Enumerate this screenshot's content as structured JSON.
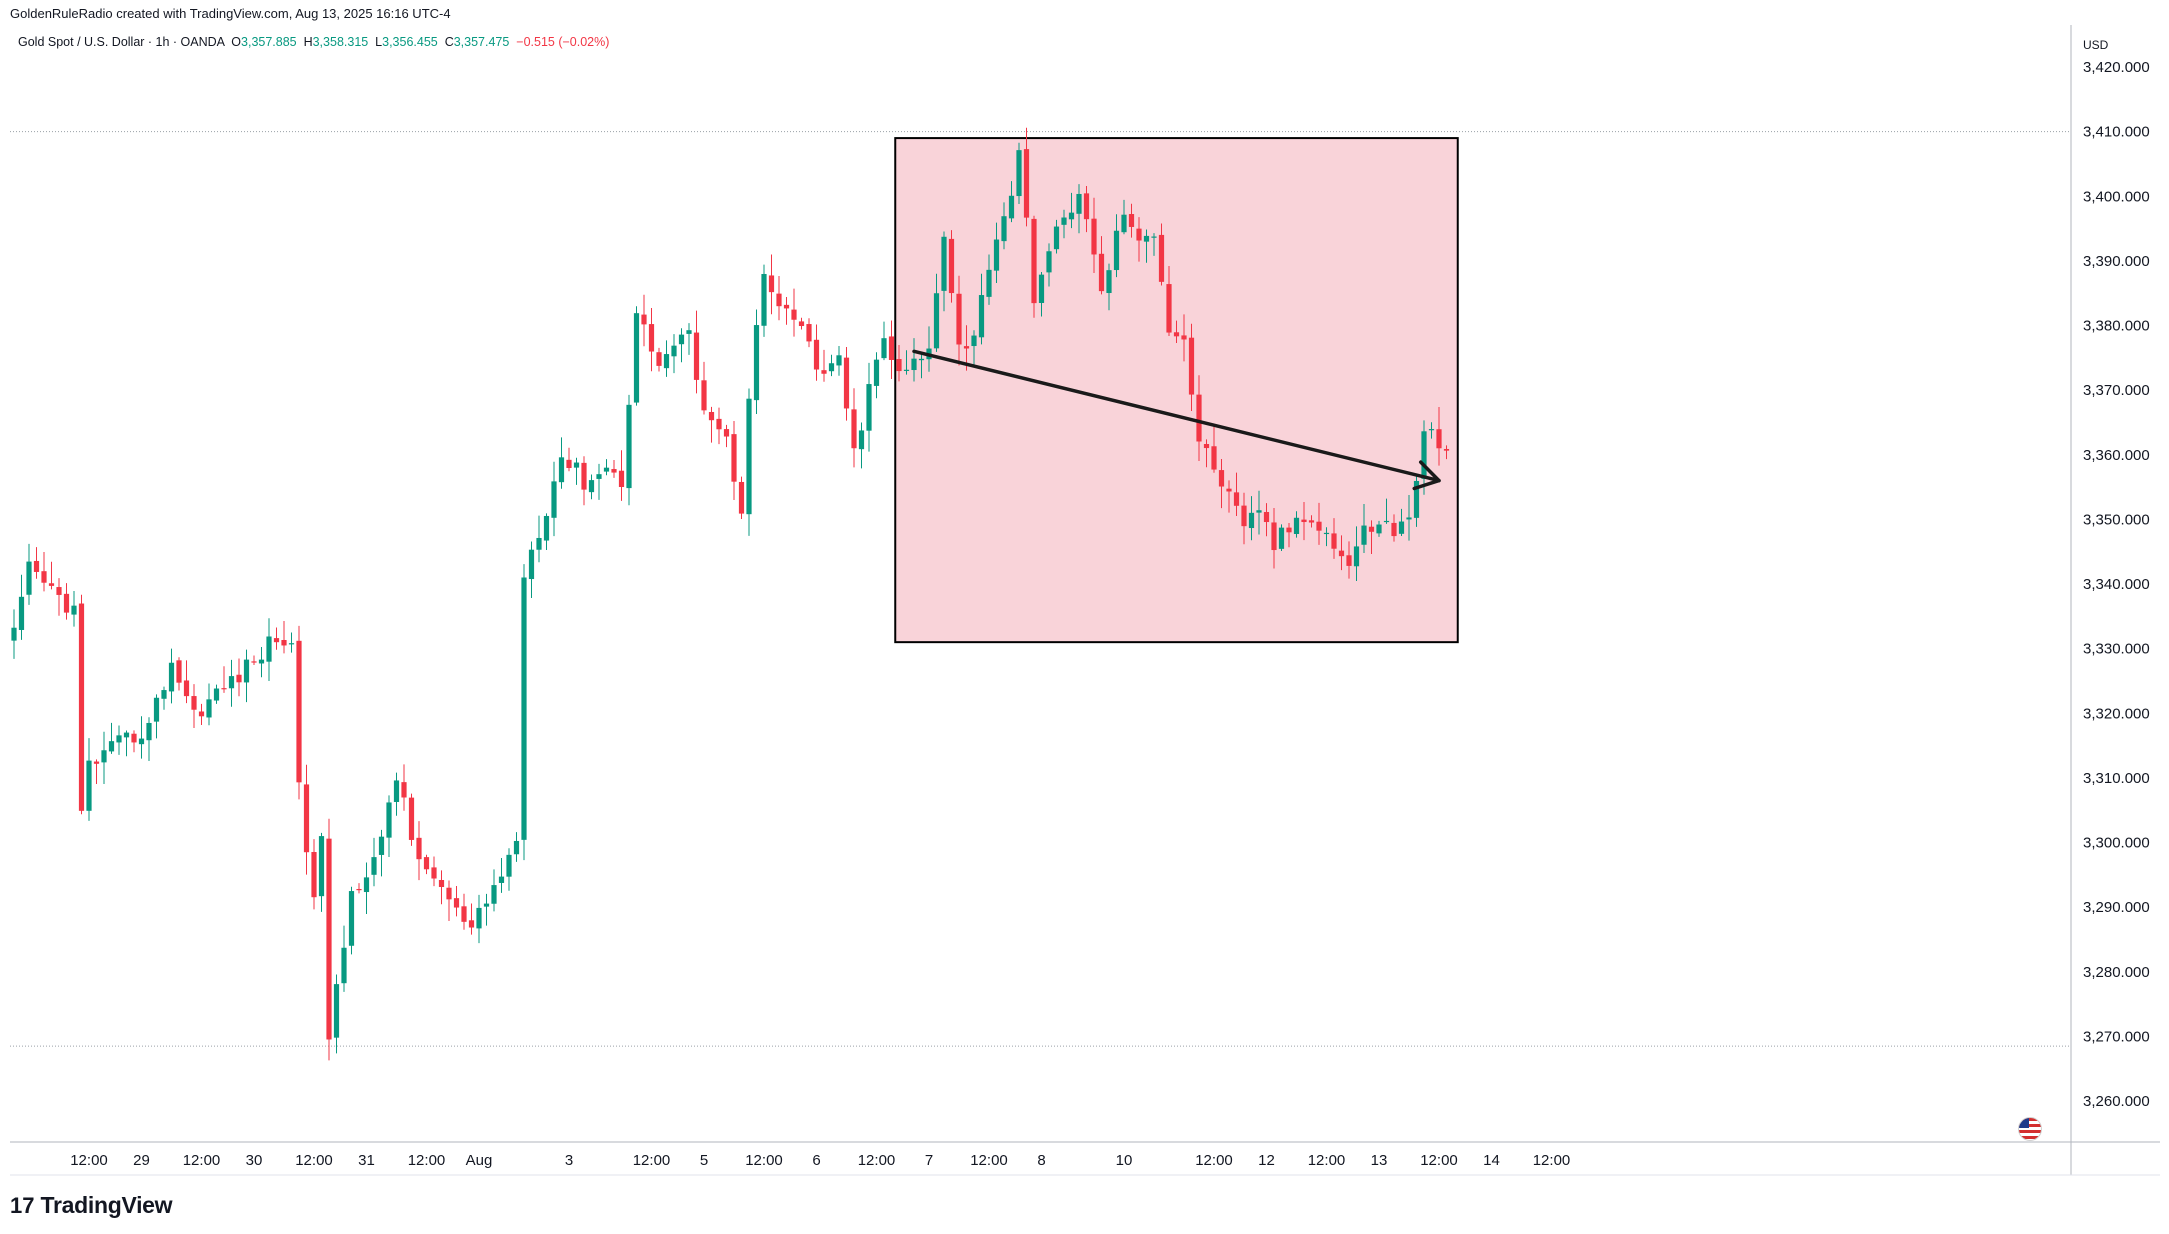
{
  "header": {
    "credit": "GoldenRuleRadio created with TradingView.com, Aug 13, 2025 16:16 UTC-4",
    "symbol": "Gold Spot / U.S. Dollar · 1h · OANDA",
    "open_label": "O",
    "open": "3,357.885",
    "high_label": "H",
    "high": "3,358.315",
    "low_label": "L",
    "low": "3,356.455",
    "close_label": "C",
    "close": "3,357.475",
    "change": "−0.515 (−0.02%)"
  },
  "brand": {
    "logo": "17",
    "name": "TradingView"
  },
  "currency": "USD",
  "colors": {
    "up": "#089981",
    "down": "#f23645",
    "box_fill": "#f9d3d9",
    "box_stroke": "#000000",
    "arrow": "#1a1a1a"
  },
  "chart_data": {
    "type": "candlestick",
    "ylim": [
      3250,
      3430
    ],
    "y_ticks": [
      "3,260.000",
      "3,270.000",
      "3,280.000",
      "3,290.000",
      "3,300.000",
      "3,310.000",
      "3,320.000",
      "3,330.000",
      "3,340.000",
      "3,350.000",
      "3,360.000",
      "3,370.000",
      "3,380.000",
      "3,390.000",
      "3,400.000",
      "3,410.000",
      "3,420.000"
    ],
    "x_ticks": [
      {
        "label": "12:00",
        "bar": 10
      },
      {
        "label": "29",
        "bar": 17
      },
      {
        "label": "12:00",
        "bar": 25
      },
      {
        "label": "30",
        "bar": 32
      },
      {
        "label": "12:00",
        "bar": 40
      },
      {
        "label": "31",
        "bar": 47
      },
      {
        "label": "12:00",
        "bar": 55
      },
      {
        "label": "Aug",
        "bar": 62
      },
      {
        "label": "3",
        "bar": 74
      },
      {
        "label": "12:00",
        "bar": 85
      },
      {
        "label": "5",
        "bar": 92
      },
      {
        "label": "12:00",
        "bar": 100
      },
      {
        "label": "6",
        "bar": 107
      },
      {
        "label": "12:00",
        "bar": 115
      },
      {
        "label": "7",
        "bar": 122
      },
      {
        "label": "12:00",
        "bar": 130
      },
      {
        "label": "8",
        "bar": 137
      },
      {
        "label": "10",
        "bar": 148
      },
      {
        "label": "12:00",
        "bar": 160
      },
      {
        "label": "12",
        "bar": 167
      },
      {
        "label": "12:00",
        "bar": 175
      },
      {
        "label": "13",
        "bar": 182
      },
      {
        "label": "12:00",
        "bar": 190
      },
      {
        "label": "14",
        "bar": 197
      },
      {
        "label": "12:00",
        "bar": 205
      }
    ],
    "bars": 192,
    "anchors": [
      [
        0,
        3332
      ],
      [
        2,
        3342
      ],
      [
        6,
        3338
      ],
      [
        8,
        3336
      ],
      [
        9,
        3304
      ],
      [
        10,
        3312
      ],
      [
        14,
        3315
      ],
      [
        18,
        3318
      ],
      [
        21,
        3328
      ],
      [
        24,
        3320
      ],
      [
        28,
        3324
      ],
      [
        32,
        3328
      ],
      [
        35,
        3332
      ],
      [
        37,
        3330
      ],
      [
        38,
        3310
      ],
      [
        40,
        3290
      ],
      [
        41,
        3302
      ],
      [
        42,
        3269
      ],
      [
        45,
        3292
      ],
      [
        49,
        3300
      ],
      [
        51,
        3310
      ],
      [
        52,
        3307
      ],
      [
        54,
        3296
      ],
      [
        56,
        3295
      ],
      [
        59,
        3289
      ],
      [
        61,
        3286
      ],
      [
        64,
        3293
      ],
      [
        67,
        3300
      ],
      [
        68,
        3342
      ],
      [
        71,
        3352
      ],
      [
        73,
        3360
      ],
      [
        76,
        3356
      ],
      [
        79,
        3358
      ],
      [
        81,
        3356
      ],
      [
        83,
        3382
      ],
      [
        86,
        3374
      ],
      [
        88,
        3377
      ],
      [
        90,
        3378
      ],
      [
        92,
        3368
      ],
      [
        95,
        3362
      ],
      [
        97,
        3352
      ],
      [
        98,
        3370
      ],
      [
        100,
        3388
      ],
      [
        102,
        3382
      ],
      [
        105,
        3380
      ],
      [
        107,
        3373
      ],
      [
        110,
        3374
      ],
      [
        112,
        3360
      ],
      [
        114,
        3370
      ],
      [
        116,
        3378
      ],
      [
        118,
        3372
      ],
      [
        122,
        3376
      ],
      [
        124,
        3395
      ],
      [
        126,
        3377
      ],
      [
        128,
        3378
      ],
      [
        130,
        3390
      ],
      [
        133,
        3401
      ],
      [
        134,
        3406
      ],
      [
        136,
        3385
      ],
      [
        139,
        3394
      ],
      [
        142,
        3401
      ],
      [
        145,
        3385
      ],
      [
        148,
        3398
      ],
      [
        150,
        3392
      ],
      [
        152,
        3395
      ],
      [
        154,
        3380
      ],
      [
        156,
        3378
      ],
      [
        158,
        3362
      ],
      [
        161,
        3356
      ],
      [
        164,
        3348
      ],
      [
        166,
        3352
      ],
      [
        168,
        3346
      ],
      [
        171,
        3350
      ],
      [
        173,
        3351
      ],
      [
        176,
        3346
      ],
      [
        178,
        3343
      ],
      [
        180,
        3348
      ],
      [
        182,
        3350
      ],
      [
        184,
        3348
      ],
      [
        186,
        3350
      ],
      [
        188,
        3364
      ],
      [
        190,
        3362
      ],
      [
        192,
        3358
      ]
    ],
    "box": {
      "x_start_bar": 117.5,
      "x_end_bar": 192.5,
      "y_top": 3409,
      "y_bottom": 3331
    },
    "trendline": {
      "from": {
        "bar": 120,
        "y": 3376
      },
      "to": {
        "bar": 190,
        "y": 3356
      }
    },
    "ref_lines": [
      3410,
      3268.5
    ]
  }
}
